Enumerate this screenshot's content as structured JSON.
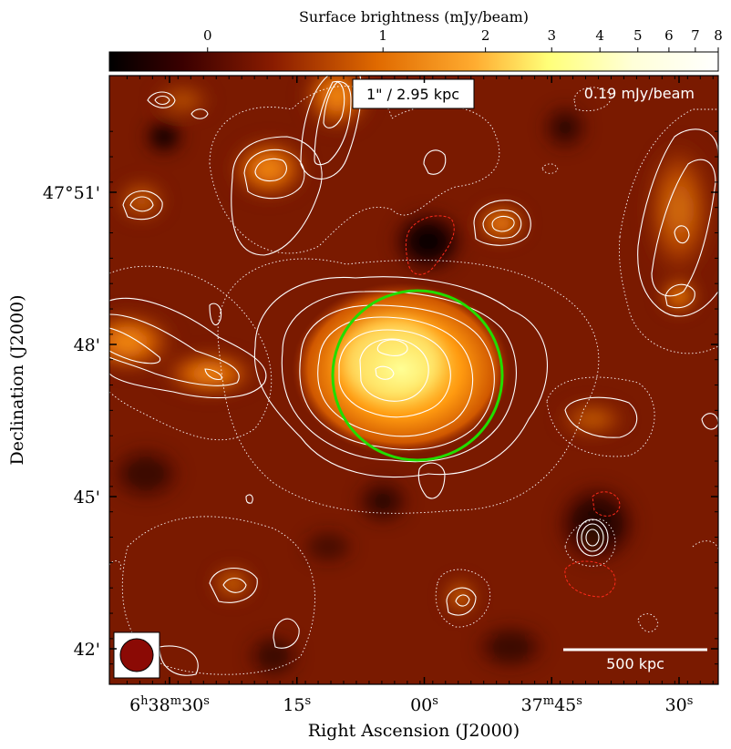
{
  "chart_data": {
    "type": "heatmap",
    "colorbar": {
      "title": "Surface brightness (mJy/beam)",
      "ticks": [
        {
          "label": "0",
          "value": 0
        },
        {
          "label": "1",
          "value": 1
        },
        {
          "label": "2",
          "value": 2
        },
        {
          "label": "3",
          "value": 3
        },
        {
          "label": "4",
          "value": 4
        },
        {
          "label": "5",
          "value": 5
        },
        {
          "label": "6",
          "value": 6
        },
        {
          "label": "7",
          "value": 7
        },
        {
          "label": "8",
          "value": 8
        }
      ],
      "range": [
        -0.5,
        8
      ],
      "colormap": "afmhot"
    },
    "xlabel": "Right Ascension (J2000)",
    "ylabel": "Declination (J2000)",
    "x_ticks": [
      {
        "label": "6h38m30s",
        "ra_sec": 30
      },
      {
        "label": "15s",
        "ra_sec": 15
      },
      {
        "label": "00s",
        "ra_sec": 0
      },
      {
        "label": "37m45s",
        "ra_sec": -15
      },
      {
        "label": "30s",
        "ra_sec": -30
      }
    ],
    "y_ticks": [
      {
        "label": "47°51'",
        "dec_arcmin": 51
      },
      {
        "label": "48'",
        "dec_arcmin": 48
      },
      {
        "label": "45'",
        "dec_arcmin": 45
      },
      {
        "label": "42'",
        "dec_arcmin": 42
      }
    ],
    "annotations": {
      "scale_text": "1\" / 2.95 kpc",
      "rms_text": "0.19 mJy/beam",
      "scalebar_text": "500 kpc"
    },
    "colors": {
      "circle": "#22dd00",
      "contour_positive": "#ffffff",
      "contour_negative": "#ff2a1a",
      "beam_fill": "#8b0a05"
    }
  }
}
